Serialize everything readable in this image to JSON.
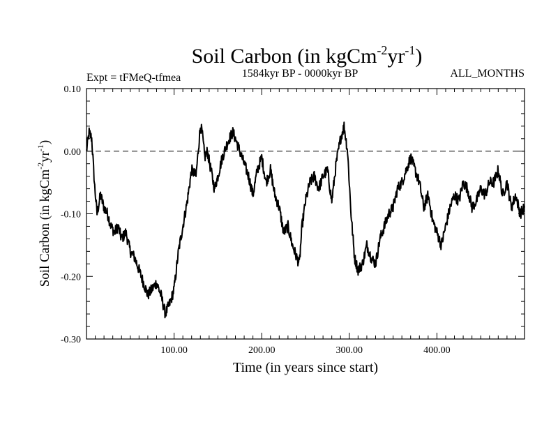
{
  "chart_data": {
    "type": "line",
    "title": "Soil Carbon (in kgCm-2yr-1)",
    "title_main": "Soil Carbon (in kgCm",
    "title_sup1": "-2",
    "title_mid": "yr",
    "title_sup2": "-1",
    "title_end": ")",
    "subtitle_left": "Expt = tFMeQ-tfmea",
    "subtitle_center": "1584kyr BP - 0000kyr BP",
    "subtitle_right": "ALL_MONTHS",
    "xlabel": "Time (in years since start)",
    "ylabel": "Soil Carbon (in kgCm-2yr-1)",
    "ylabel_main": "Soil Carbon (in kgCm",
    "ylabel_sup1": "-2",
    "ylabel_mid": "yr",
    "ylabel_sup2": "-1",
    "ylabel_end": ")",
    "xlim": [
      0,
      500
    ],
    "ylim": [
      -0.3,
      0.1
    ],
    "x_ticks": [
      100,
      200,
      300,
      400
    ],
    "x_tick_labels": [
      "100.00",
      "200.00",
      "300.00",
      "400.00"
    ],
    "y_ticks": [
      0.1,
      0.0,
      -0.1,
      -0.2,
      -0.3
    ],
    "y_tick_labels": [
      "0.10",
      "0.00",
      "-0.10",
      "-0.20",
      "-0.30"
    ],
    "zero_line": 0.0,
    "series": [
      {
        "name": "Soil Carbon",
        "x": [
          0,
          3,
          6,
          9,
          12,
          16,
          20,
          24,
          28,
          32,
          36,
          40,
          45,
          50,
          55,
          60,
          65,
          70,
          75,
          80,
          85,
          90,
          93,
          96,
          100,
          105,
          110,
          115,
          120,
          125,
          130,
          132,
          135,
          138,
          142,
          146,
          150,
          155,
          160,
          163,
          167,
          170,
          175,
          180,
          185,
          190,
          195,
          200,
          205,
          210,
          215,
          220,
          225,
          230,
          235,
          240,
          243,
          246,
          250,
          255,
          260,
          265,
          270,
          275,
          280,
          285,
          290,
          294,
          298,
          302,
          306,
          310,
          315,
          320,
          325,
          330,
          335,
          340,
          345,
          350,
          355,
          360,
          365,
          370,
          375,
          380,
          385,
          390,
          395,
          400,
          405,
          410,
          415,
          420,
          425,
          430,
          435,
          440,
          445,
          450,
          455,
          460,
          465,
          470,
          475,
          480,
          485,
          490,
          495,
          500
        ],
        "values": [
          0.0,
          0.03,
          0.02,
          -0.05,
          -0.1,
          -0.07,
          -0.09,
          -0.1,
          -0.12,
          -0.13,
          -0.12,
          -0.14,
          -0.13,
          -0.16,
          -0.17,
          -0.19,
          -0.21,
          -0.23,
          -0.22,
          -0.21,
          -0.23,
          -0.26,
          -0.25,
          -0.24,
          -0.22,
          -0.16,
          -0.12,
          -0.08,
          -0.03,
          -0.04,
          0.04,
          0.03,
          -0.01,
          0.0,
          -0.03,
          -0.06,
          -0.04,
          -0.01,
          0.01,
          0.02,
          0.03,
          0.02,
          0.0,
          -0.02,
          -0.04,
          -0.07,
          -0.03,
          -0.01,
          -0.05,
          -0.03,
          -0.07,
          -0.09,
          -0.13,
          -0.12,
          -0.15,
          -0.17,
          -0.18,
          -0.12,
          -0.08,
          -0.05,
          -0.04,
          -0.06,
          -0.04,
          -0.03,
          -0.08,
          -0.02,
          0.02,
          0.04,
          0.0,
          -0.1,
          -0.17,
          -0.19,
          -0.18,
          -0.15,
          -0.17,
          -0.18,
          -0.14,
          -0.12,
          -0.1,
          -0.09,
          -0.06,
          -0.05,
          -0.03,
          -0.01,
          -0.03,
          -0.05,
          -0.09,
          -0.07,
          -0.11,
          -0.13,
          -0.15,
          -0.12,
          -0.09,
          -0.07,
          -0.08,
          -0.05,
          -0.06,
          -0.09,
          -0.08,
          -0.06,
          -0.07,
          -0.05,
          -0.05,
          -0.03,
          -0.07,
          -0.05,
          -0.09,
          -0.07,
          -0.1,
          -0.09
        ]
      }
    ],
    "line_color": "#000000",
    "grid": false,
    "legend": "none"
  }
}
